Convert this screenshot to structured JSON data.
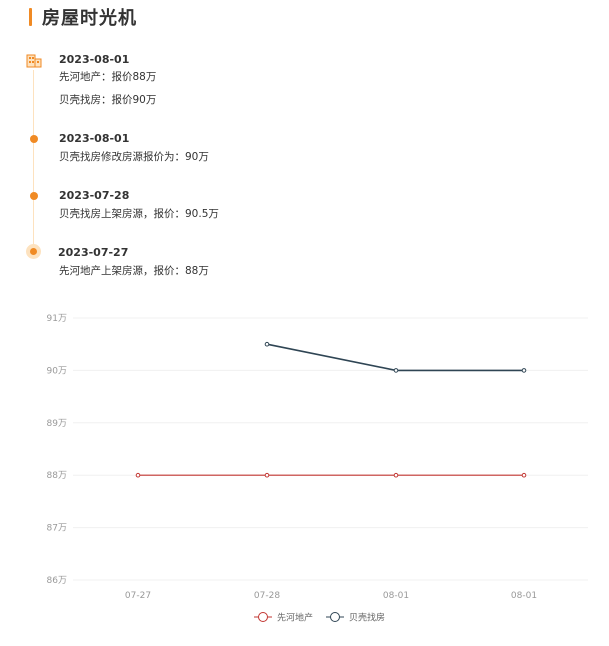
{
  "header": {
    "title": "房屋时光机"
  },
  "timeline": [
    {
      "date": "2023-08-01",
      "lines": [
        "先河地产：报价88万",
        "贝壳找房：报价90万"
      ],
      "marker": "house-icon"
    },
    {
      "date": "2023-08-01",
      "lines": [
        "贝壳找房修改房源报价为：90万"
      ],
      "marker": "dot"
    },
    {
      "date": "2023-07-28",
      "lines": [
        "贝壳找房上架房源，报价：90.5万"
      ],
      "marker": "dot"
    },
    {
      "date": "2023-07-27",
      "lines": [
        "先河地产上架房源，报价：88万"
      ],
      "marker": "ring-dot"
    }
  ],
  "colors": {
    "accent": "#f08a24",
    "accent_light": "#fde2bf",
    "series1": "#c23531",
    "series2": "#2f4554"
  },
  "chart_data": {
    "type": "line",
    "categories": [
      "07-27",
      "07-28",
      "08-01",
      "08-01"
    ],
    "series": [
      {
        "name": "先河地产",
        "values": [
          88,
          88,
          88,
          88
        ],
        "color": "#c23531"
      },
      {
        "name": "贝壳找房",
        "values": [
          null,
          90.5,
          90,
          90
        ],
        "color": "#2f4554"
      }
    ],
    "ylim": [
      86,
      91
    ],
    "yticks": [
      86,
      87,
      88,
      89,
      90,
      91
    ],
    "ytick_labels": [
      "86万",
      "87万",
      "88万",
      "89万",
      "90万",
      "91万"
    ],
    "grid": true,
    "legend_position": "bottom"
  }
}
